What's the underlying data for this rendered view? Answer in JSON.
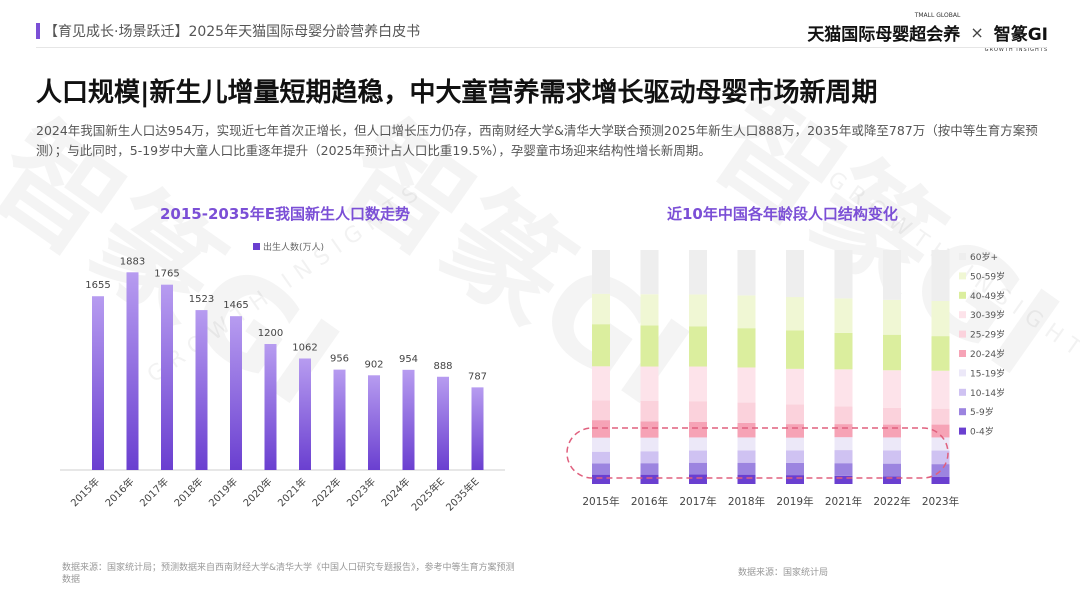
{
  "header": {
    "left_text": "【育见成长·场景跃迁】2025年天猫国际母婴分龄营养白皮书",
    "tmall_logo": "天猫国际母婴超会养",
    "tmall_small": "TMALL GLOBAL",
    "times": "×",
    "gi_logo": "智篆GI",
    "gi_small": "GROWTH INSIGHTS"
  },
  "watermarks": {
    "main": "智篆GI",
    "sub": "GROWTH INSIGHTS"
  },
  "title": "人口规模|新生儿增量短期趋稳，中大童营养需求增长驱动母婴市场新周期",
  "description": "2024年我国新生人口达954万，实现近七年首次正增长，但人口增长压力仍存，西南财经大学&清华大学联合预测2025年新生人口888万，2035年或降至787万（按中等生育方案预测）；与此同时，5-19岁中大童人口比重逐年提升（2025年预计占人口比重19.5%），孕婴童市场迎来结构性增长新周期。",
  "colors": {
    "accent": "#7b4fd6",
    "bar_top": "#b79cf0",
    "bar_bottom": "#6a3fd0"
  },
  "chart_data": [
    {
      "type": "bar",
      "title": "2015-2035年E我国新生人口数走势",
      "legend": "出生人数(万人)",
      "categories": [
        "2015年",
        "2016年",
        "2017年",
        "2018年",
        "2019年",
        "2020年",
        "2021年",
        "2022年",
        "2023年",
        "2024年",
        "2025年E",
        "2035年E"
      ],
      "values": [
        1655,
        1883,
        1765,
        1523,
        1465,
        1200,
        1062,
        956,
        902,
        954,
        888,
        787
      ],
      "ylim": [
        0,
        2000
      ],
      "source": "数据来源：国家统计局；预测数据来自西南财经大学&清华大学《中国人口研究专题报告》，参考中等生育方案预测数据"
    },
    {
      "type": "bar",
      "stacked": true,
      "title": "近10年中国各年龄段人口结构变化",
      "categories": [
        "2015年",
        "2016年",
        "2017年",
        "2018年",
        "2019年",
        "2021年",
        "2022年",
        "2023年"
      ],
      "ylim": [
        0,
        100
      ],
      "series": [
        {
          "name": "0-4岁",
          "color": "#6a3fd0",
          "values": [
            4.0,
            4.0,
            4.1,
            4.0,
            3.8,
            3.5,
            3.3,
            3.0
          ]
        },
        {
          "name": "5-9岁",
          "color": "#9c84e0",
          "values": [
            4.8,
            4.9,
            5.0,
            5.1,
            5.2,
            5.4,
            5.4,
            5.5
          ]
        },
        {
          "name": "10-14岁",
          "color": "#cfc2f2",
          "values": [
            5.0,
            5.1,
            5.2,
            5.3,
            5.4,
            5.6,
            5.7,
            5.8
          ]
        },
        {
          "name": "15-19岁",
          "color": "#ece8f8",
          "values": [
            6.0,
            5.8,
            5.6,
            5.5,
            5.4,
            5.5,
            5.5,
            5.6
          ]
        },
        {
          "name": "20-24岁",
          "color": "#f6a3b6",
          "values": [
            7.5,
            7.0,
            6.6,
            6.2,
            5.8,
            5.6,
            5.5,
            5.5
          ]
        },
        {
          "name": "25-29岁",
          "color": "#fbd2dc",
          "values": [
            8.5,
            8.8,
            8.9,
            8.7,
            8.4,
            7.6,
            7.2,
            6.8
          ]
        },
        {
          "name": "30-39岁",
          "color": "#fde3ea",
          "values": [
            14.5,
            14.6,
            14.8,
            15.0,
            15.2,
            15.8,
            16.0,
            16.2
          ]
        },
        {
          "name": "40-49岁",
          "color": "#dbee9e",
          "values": [
            18.0,
            17.6,
            17.2,
            16.8,
            16.4,
            15.6,
            15.2,
            14.8
          ]
        },
        {
          "name": "50-59岁",
          "color": "#f0f7d4",
          "values": [
            13.0,
            13.3,
            13.6,
            14.0,
            14.3,
            14.7,
            14.9,
            15.0
          ]
        },
        {
          "name": "60岁+",
          "color": "#eeeeee",
          "values": [
            18.7,
            18.9,
            19.0,
            19.4,
            20.1,
            20.7,
            21.3,
            21.8
          ]
        }
      ],
      "source": "数据来源：国家统计局"
    }
  ]
}
